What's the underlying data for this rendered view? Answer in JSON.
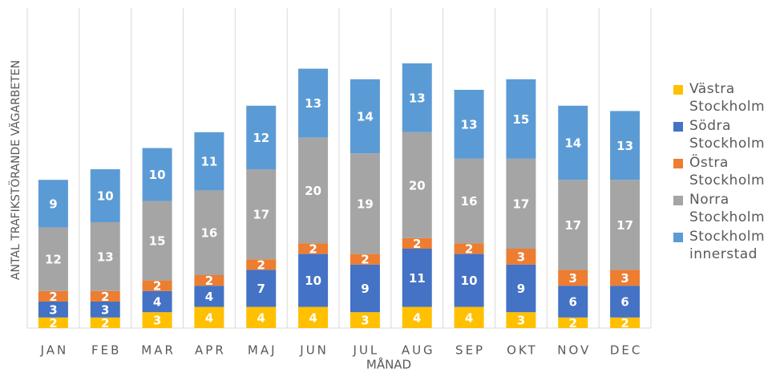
{
  "chart_data": {
    "type": "stacked_bar",
    "x_label": "MÅNAD",
    "y_label": "ANTAL TRAFIKSTÖRANDE VÄGARBETEN",
    "categories": [
      "JAN",
      "FEB",
      "MAR",
      "APR",
      "MAJ",
      "JUN",
      "JUL",
      "AUG",
      "SEP",
      "OKT",
      "NOV",
      "DEC"
    ],
    "series": [
      {
        "name": "Västra Stockholm",
        "color": "#FFC000",
        "values": [
          2,
          2,
          3,
          4,
          4,
          4,
          3,
          4,
          4,
          3,
          2,
          2
        ]
      },
      {
        "name": "Södra Stockholm",
        "color": "#4472C4",
        "values": [
          3,
          3,
          4,
          4,
          7,
          10,
          9,
          11,
          10,
          9,
          6,
          6
        ]
      },
      {
        "name": "Östra Stockholm",
        "color": "#ED7D31",
        "values": [
          2,
          2,
          2,
          2,
          2,
          2,
          2,
          2,
          2,
          3,
          3,
          3
        ]
      },
      {
        "name": "Norra Stockholm",
        "color": "#A5A5A5",
        "values": [
          12,
          13,
          15,
          16,
          17,
          20,
          19,
          20,
          16,
          17,
          17,
          17
        ]
      },
      {
        "name": "Stockholm innerstad",
        "color": "#5B9BD5",
        "values": [
          9,
          10,
          10,
          11,
          12,
          13,
          14,
          13,
          13,
          15,
          14,
          13
        ]
      }
    ],
    "grid": true,
    "legend": "right"
  }
}
